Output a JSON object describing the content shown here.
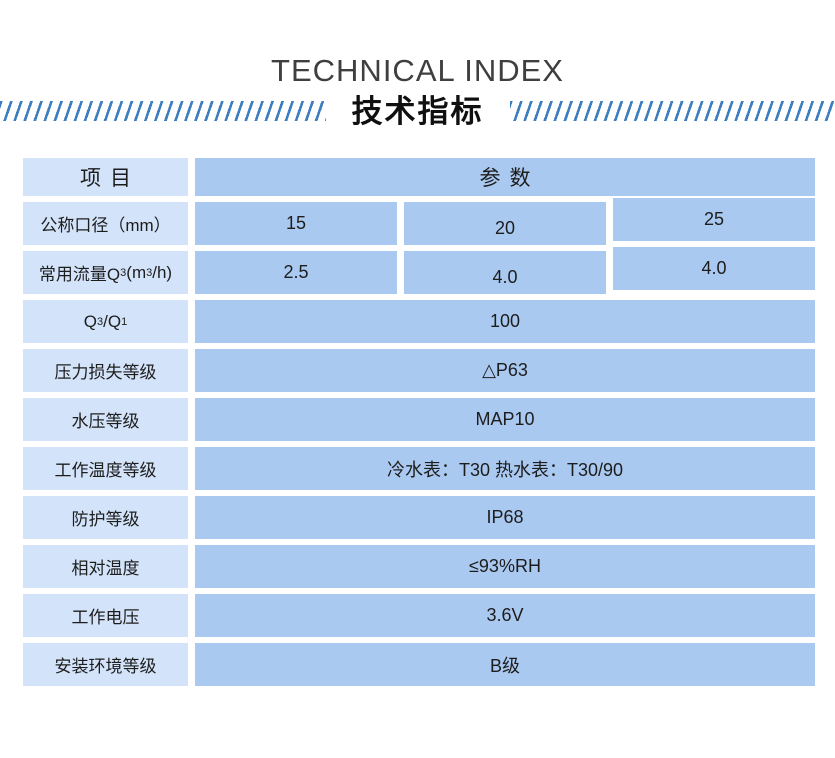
{
  "header": {
    "title_en": "TECHNICAL INDEX",
    "title_zh": "技术指标"
  },
  "table": {
    "col_item": "项目",
    "col_param": "参数",
    "rows": [
      {
        "label": "公称口径（mm）",
        "values": [
          "15",
          "20",
          "25"
        ]
      },
      {
        "label_parts": {
          "pre": "常用流量Q",
          "sub1": "3",
          "mid": "(m",
          "sup1": "3",
          "post": "/h)"
        },
        "values": [
          "2.5",
          "4.0",
          "4.0"
        ]
      },
      {
        "label_parts": {
          "p1": "Q",
          "sub1": "3",
          "p2": "/Q",
          "sub2": "1"
        },
        "value": "100"
      },
      {
        "label": "压力损失等级",
        "value": "△P63"
      },
      {
        "label": "水压等级",
        "value": "MAP10"
      },
      {
        "label": "工作温度等级",
        "value": "冷水表：T30 热水表：T30/90"
      },
      {
        "label": "防护等级",
        "value": "IP68"
      },
      {
        "label": "相对温度",
        "value": "≤93%RH"
      },
      {
        "label": "工作电压",
        "value": "3.6V"
      },
      {
        "label": "安装环境等级",
        "value": "B级"
      }
    ]
  },
  "colors": {
    "cell_light": "#d3e3f9",
    "cell_dark": "#aac9f0",
    "stripe_blue": "#3d7ec1",
    "title_gray": "#3f3f3f",
    "text_dark": "#1d1d1d"
  }
}
